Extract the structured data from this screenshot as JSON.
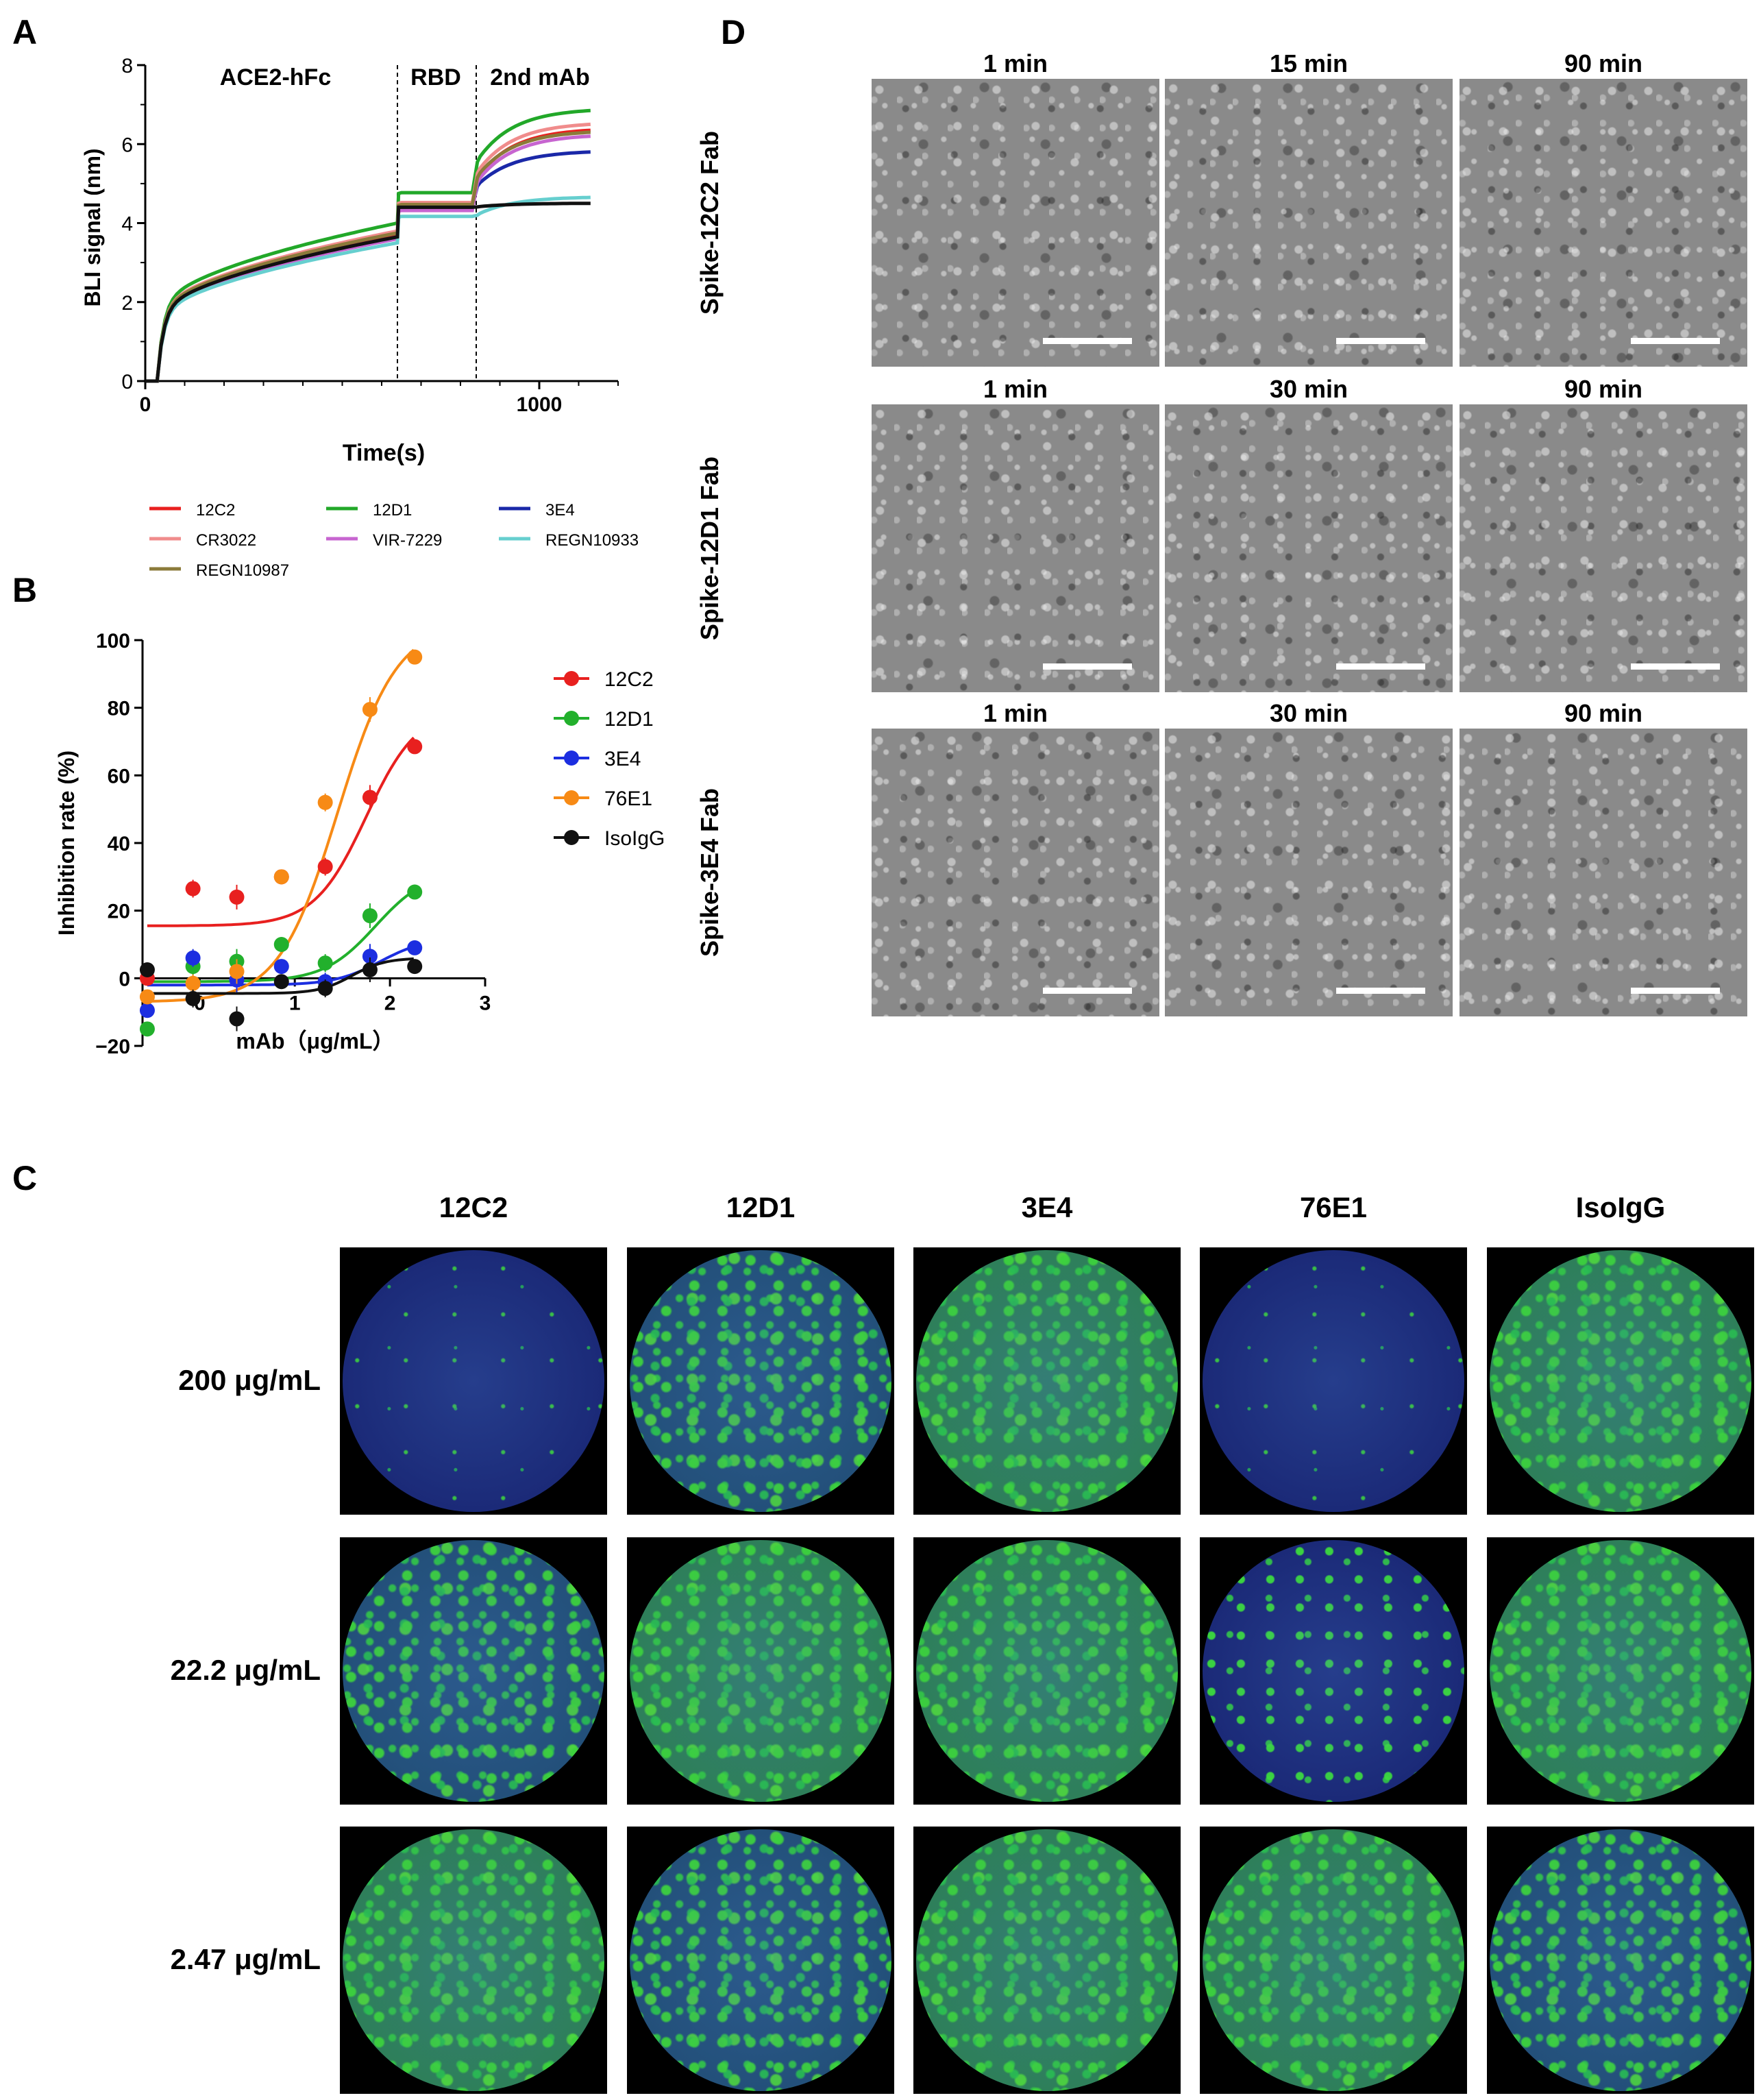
{
  "panel_letters": {
    "a": "A",
    "b": "B",
    "c": "C",
    "d": "D"
  },
  "panel_a": {
    "chart_data": {
      "type": "line",
      "xlabel": "Time(s)",
      "ylabel": "BLI signal (nm)",
      "xlim": [
        0,
        1200
      ],
      "ylim": [
        0,
        8
      ],
      "xticks": [
        "0",
        "1000"
      ],
      "yticks": [
        "0",
        "2",
        "4",
        "6",
        "8"
      ],
      "phase_labels": [
        "ACE2-hFc",
        "RBD",
        "2nd mAb"
      ],
      "phase_boundaries": [
        640,
        840
      ],
      "series": [
        {
          "name": "12C2",
          "color": "#e8201f",
          "assoc": 3.7,
          "rbd": 4.35,
          "end": 6.35
        },
        {
          "name": "12D1",
          "color": "#22a829",
          "assoc": 4.0,
          "rbd": 4.75,
          "end": 6.85
        },
        {
          "name": "3E4",
          "color": "#1a28a8",
          "assoc": 3.65,
          "rbd": 4.4,
          "end": 5.8
        },
        {
          "name": "CR3022",
          "color": "#f08c8c",
          "assoc": 3.8,
          "rbd": 4.5,
          "end": 6.5
        },
        {
          "name": "VIR-7229",
          "color": "#c765d0",
          "assoc": 3.6,
          "rbd": 4.3,
          "end": 6.2
        },
        {
          "name": "REGN10933",
          "color": "#66cfcf",
          "assoc": 3.5,
          "rbd": 4.15,
          "end": 4.65
        },
        {
          "name": "REGN10987",
          "color": "#8b7a3a",
          "assoc": 3.75,
          "rbd": 4.45,
          "end": 6.3
        },
        {
          "name": "",
          "color": "#111111",
          "assoc": 3.65,
          "rbd": 4.4,
          "end": 4.5
        }
      ]
    }
  },
  "panel_b": {
    "chart_data": {
      "type": "scatter",
      "xlabel": "mAb（μg/mL）",
      "ylabel": "Inhibition rate (%)",
      "xlim": [
        -0.6,
        3
      ],
      "ylim": [
        -20,
        100
      ],
      "xticks": [
        "0",
        "1",
        "2",
        "3"
      ],
      "yticks": [
        "−20",
        "0",
        "20",
        "40",
        "60",
        "80",
        "100"
      ],
      "x": [
        -0.55,
        -0.07,
        0.39,
        0.86,
        1.32,
        1.79,
        2.26
      ],
      "series": [
        {
          "name": "12C2",
          "color": "#e8201f",
          "values": [
            0,
            26.5,
            24,
            30,
            33,
            53.5,
            68.5
          ],
          "fit_bottom": 15.5,
          "fit_top": 80,
          "fit_mid": 1.75,
          "fit_slope": 1.6
        },
        {
          "name": "12D1",
          "color": "#22b02c",
          "values": [
            -15,
            3.5,
            5,
            10,
            4.5,
            18.5,
            25.5
          ],
          "fit_bottom": -1,
          "fit_top": 32,
          "fit_mid": 1.85,
          "fit_slope": 1.6
        },
        {
          "name": "3E4",
          "color": "#1c2ee0",
          "values": [
            -9.5,
            6,
            -0.5,
            3.5,
            -1,
            6.5,
            9
          ],
          "fit_bottom": -2,
          "fit_top": 12,
          "fit_mid": 1.9,
          "fit_slope": 1.8
        },
        {
          "name": "76E1",
          "color": "#f78a15",
          "values": [
            -5.5,
            -1.5,
            2,
            30,
            52,
            79.5,
            95
          ],
          "fit_bottom": -7,
          "fit_top": 105,
          "fit_mid": 1.45,
          "fit_slope": 1.4
        },
        {
          "name": "IsoIgG",
          "color": "#111111",
          "values": [
            2.5,
            -6,
            -12,
            -1,
            -3,
            2.5,
            3.5
          ],
          "fit_bottom": -4.5,
          "fit_top": 6,
          "fit_mid": 1.6,
          "fit_slope": 2.5
        }
      ]
    }
  },
  "panel_c": {
    "columns": [
      "12C2",
      "12D1",
      "3E4",
      "76E1",
      "IsoIgG"
    ],
    "rows": [
      "200 μg/mL",
      "22.2 μg/mL",
      "2.47 μg/mL"
    ]
  },
  "panel_d": {
    "rows": [
      {
        "label": "Spike-12C2 Fab",
        "times": [
          "1 min",
          "15 min",
          "90 min"
        ]
      },
      {
        "label": "Spike-12D1 Fab",
        "times": [
          "1 min",
          "30 min",
          "90 min"
        ]
      },
      {
        "label": "Spike-3E4 Fab",
        "times": [
          "1 min",
          "30 min",
          "90 min"
        ]
      }
    ]
  }
}
